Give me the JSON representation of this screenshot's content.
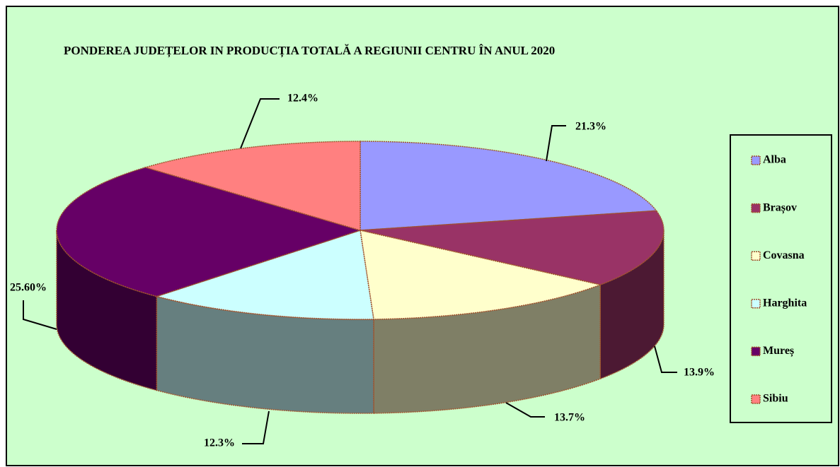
{
  "chart_data": {
    "type": "pie3d",
    "title": "PONDEREA JUDEȚELOR IN PRODUCȚIA TOTALĂ  A  REGIUNII CENTRU ÎN ANUL 2020",
    "categories": [
      "Alba",
      "Brașov",
      "Covasna",
      "Harghita",
      "Mureș",
      "Sibiu"
    ],
    "values": [
      21.3,
      13.9,
      13.7,
      12.3,
      25.6,
      12.4
    ],
    "value_labels": [
      "21.3%",
      "13.9%",
      "13.7%",
      "12.3%",
      "25.60%",
      "12.4%"
    ],
    "colors": [
      "#9999ff",
      "#993366",
      "#ffffcc",
      "#ccffff",
      "#660066",
      "#ff8080"
    ],
    "legend": "right"
  }
}
